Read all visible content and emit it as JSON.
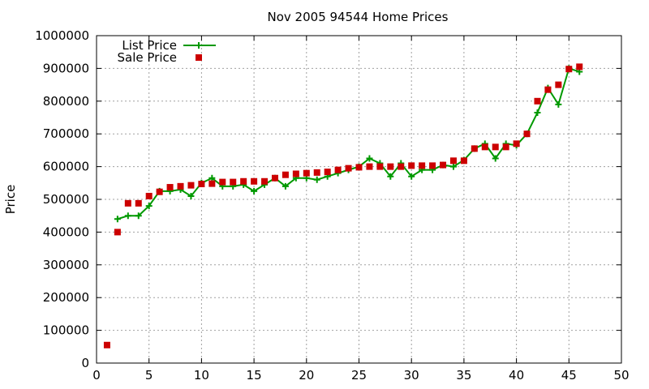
{
  "chart_data": {
    "type": "line",
    "title": "Nov 2005 94544 Home Prices",
    "xlabel": "",
    "ylabel": "Price",
    "xlim": [
      0,
      50
    ],
    "ylim": [
      0,
      1000000
    ],
    "x_ticks": [
      "0",
      "5",
      "10",
      "15",
      "20",
      "25",
      "30",
      "35",
      "40",
      "45",
      "50"
    ],
    "y_ticks": [
      "0",
      "100000",
      "200000",
      "300000",
      "400000",
      "500000",
      "600000",
      "700000",
      "800000",
      "900000",
      "1000000"
    ],
    "grid": true,
    "legend_position": "top-left",
    "series": [
      {
        "name": "List Price",
        "style": "line+plus",
        "color": "#009900",
        "x": [
          2,
          3,
          4,
          5,
          6,
          7,
          8,
          9,
          10,
          11,
          12,
          13,
          14,
          15,
          16,
          17,
          18,
          19,
          20,
          21,
          22,
          23,
          24,
          25,
          26,
          27,
          28,
          29,
          30,
          31,
          32,
          33,
          34,
          35,
          36,
          37,
          38,
          39,
          40,
          41,
          42,
          43,
          44,
          45,
          46
        ],
        "y": [
          440000,
          450000,
          450000,
          480000,
          525000,
          525000,
          530000,
          510000,
          550000,
          565000,
          540000,
          540000,
          545000,
          525000,
          545000,
          565000,
          540000,
          565000,
          565000,
          560000,
          570000,
          580000,
          590000,
          600000,
          625000,
          610000,
          570000,
          610000,
          570000,
          590000,
          590000,
          605000,
          600000,
          620000,
          655000,
          670000,
          625000,
          670000,
          665000,
          700000,
          765000,
          840000,
          790000,
          900000,
          890000
        ]
      },
      {
        "name": "Sale Price",
        "style": "points-square",
        "color": "#cc0000",
        "x": [
          1,
          2,
          3,
          4,
          5,
          6,
          7,
          8,
          9,
          10,
          11,
          12,
          13,
          14,
          15,
          16,
          17,
          18,
          19,
          20,
          21,
          22,
          23,
          24,
          25,
          26,
          27,
          28,
          29,
          30,
          31,
          32,
          33,
          34,
          35,
          36,
          37,
          38,
          39,
          40,
          41,
          42,
          43,
          44,
          45,
          46
        ],
        "y": [
          55000,
          400000,
          488000,
          488000,
          510000,
          523000,
          537000,
          540000,
          543000,
          547000,
          548000,
          553000,
          553000,
          555000,
          555000,
          555000,
          565000,
          575000,
          578000,
          580000,
          582000,
          584000,
          590000,
          595000,
          598000,
          600000,
          600000,
          600000,
          600000,
          603000,
          603000,
          603000,
          605000,
          618000,
          618000,
          655000,
          660000,
          660000,
          660000,
          670000,
          700000,
          800000,
          835000,
          850000,
          898000,
          905000
        ]
      }
    ]
  }
}
